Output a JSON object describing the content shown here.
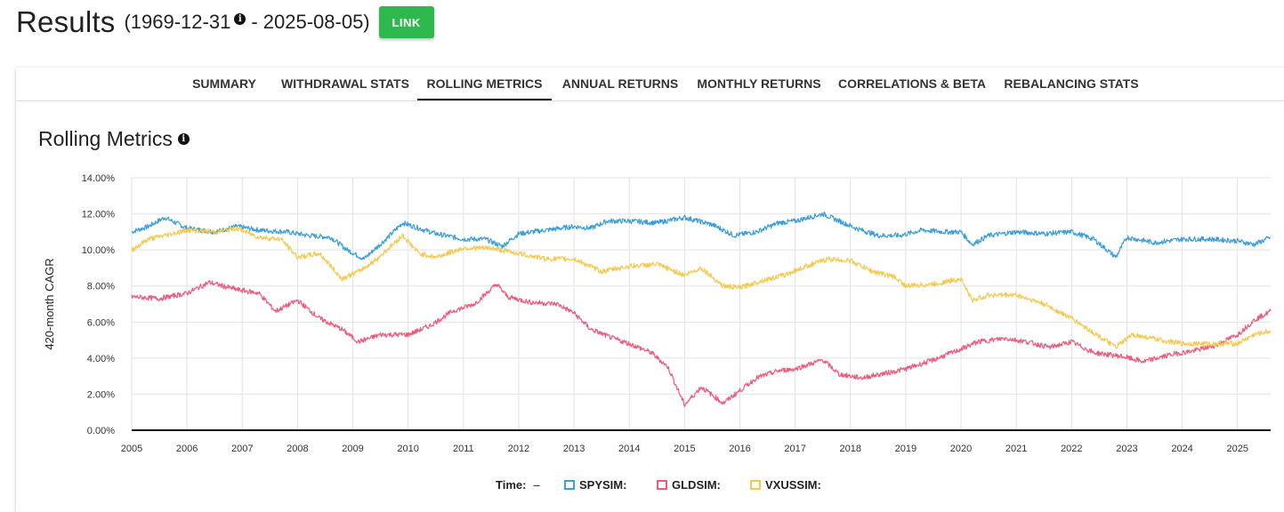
{
  "header": {
    "title": "Results",
    "range_start": "(1969-12-31",
    "range_end": "- 2025-08-05)",
    "link_label": "LINK"
  },
  "tabs": [
    {
      "label": "SUMMARY",
      "active": false
    },
    {
      "label": "WITHDRAWAL STATS",
      "active": false
    },
    {
      "label": "ROLLING METRICS",
      "active": true
    },
    {
      "label": "ANNUAL RETURNS",
      "active": false
    },
    {
      "label": "MONTHLY RETURNS",
      "active": false
    },
    {
      "label": "CORRELATIONS & BETA",
      "active": false
    },
    {
      "label": "REBALANCING STATS",
      "active": false
    }
  ],
  "section": {
    "title": "Rolling Metrics",
    "info_icon": "info-circle-icon"
  },
  "legend": {
    "time_label": "Time:",
    "time_value": "–"
  },
  "chart_data": {
    "type": "line",
    "ylabel": "420-month CAGR",
    "xlabel": "",
    "ylim": [
      0,
      14
    ],
    "xlim": [
      2005,
      2025.6
    ],
    "yticks": [
      "0.00%",
      "2.00%",
      "4.00%",
      "6.00%",
      "8.00%",
      "10.00%",
      "12.00%",
      "14.00%"
    ],
    "xticks": [
      "2005",
      "2006",
      "2007",
      "2008",
      "2009",
      "2010",
      "2011",
      "2012",
      "2013",
      "2014",
      "2015",
      "2016",
      "2017",
      "2018",
      "2019",
      "2020",
      "2021",
      "2022",
      "2023",
      "2024",
      "2025"
    ],
    "grid": true,
    "legend_position": "bottom",
    "series": [
      {
        "name": "SPYSIM:",
        "color": "#3b9ddc",
        "x": [
          2005.0,
          2005.3,
          2005.6,
          2006.0,
          2006.5,
          2006.9,
          2007.3,
          2007.8,
          2008.2,
          2008.6,
          2008.9,
          2009.2,
          2009.6,
          2009.9,
          2010.2,
          2010.5,
          2011.0,
          2011.4,
          2011.7,
          2012.0,
          2012.5,
          2013.0,
          2013.3,
          2013.6,
          2014.0,
          2014.5,
          2015.0,
          2015.5,
          2015.9,
          2016.3,
          2016.7,
          2017.0,
          2017.5,
          2017.8,
          2018.1,
          2018.5,
          2018.9,
          2019.3,
          2019.7,
          2020.0,
          2020.2,
          2020.5,
          2021.0,
          2021.5,
          2022.0,
          2022.4,
          2022.8,
          2023.0,
          2023.5,
          2024.0,
          2024.5,
          2025.0,
          2025.3,
          2025.6
        ],
        "values": [
          11.0,
          11.3,
          11.8,
          11.2,
          11.0,
          11.3,
          11.1,
          11.0,
          10.8,
          10.7,
          10.0,
          9.5,
          10.6,
          11.5,
          11.2,
          10.9,
          10.6,
          10.6,
          10.2,
          10.9,
          11.1,
          11.3,
          11.2,
          11.6,
          11.6,
          11.5,
          11.8,
          11.4,
          10.8,
          11.0,
          11.5,
          11.6,
          12.0,
          11.6,
          11.2,
          10.8,
          10.8,
          11.1,
          11.0,
          11.0,
          10.3,
          10.8,
          11.0,
          10.9,
          11.0,
          10.6,
          9.6,
          10.7,
          10.4,
          10.6,
          10.6,
          10.5,
          10.3,
          10.7
        ]
      },
      {
        "name": "GLDSIM:",
        "color": "#ee5a7c",
        "x": [
          2005.0,
          2005.5,
          2006.0,
          2006.4,
          2006.9,
          2007.3,
          2007.6,
          2008.0,
          2008.4,
          2008.8,
          2009.1,
          2009.5,
          2010.0,
          2010.4,
          2010.8,
          2011.2,
          2011.6,
          2011.8,
          2012.2,
          2012.7,
          2013.0,
          2013.3,
          2013.7,
          2014.0,
          2014.4,
          2014.7,
          2015.0,
          2015.3,
          2015.7,
          2016.0,
          2016.3,
          2016.7,
          2017.0,
          2017.5,
          2017.8,
          2018.2,
          2018.7,
          2019.0,
          2019.5,
          2020.0,
          2020.3,
          2020.8,
          2021.2,
          2021.6,
          2022.0,
          2022.4,
          2022.9,
          2023.3,
          2023.8,
          2024.2,
          2024.6,
          2025.0,
          2025.3,
          2025.6
        ],
        "values": [
          7.4,
          7.3,
          7.6,
          8.2,
          7.8,
          7.6,
          6.6,
          7.2,
          6.2,
          5.6,
          4.9,
          5.3,
          5.3,
          5.8,
          6.6,
          7.0,
          8.1,
          7.4,
          7.1,
          7.0,
          6.5,
          5.6,
          5.1,
          4.8,
          4.3,
          3.5,
          1.4,
          2.4,
          1.5,
          2.2,
          2.9,
          3.3,
          3.4,
          3.9,
          3.1,
          2.9,
          3.2,
          3.4,
          3.9,
          4.5,
          4.9,
          5.1,
          4.9,
          4.6,
          4.9,
          4.3,
          4.1,
          3.8,
          4.2,
          4.4,
          4.7,
          5.3,
          6.1,
          6.6
        ]
      },
      {
        "name": "VXUSSIM:",
        "color": "#f6c94e",
        "x": [
          2005.0,
          2005.3,
          2005.6,
          2006.0,
          2006.5,
          2006.9,
          2007.3,
          2007.7,
          2008.0,
          2008.4,
          2008.8,
          2009.1,
          2009.4,
          2009.9,
          2010.2,
          2010.5,
          2011.0,
          2011.5,
          2012.0,
          2012.5,
          2013.0,
          2013.5,
          2014.0,
          2014.5,
          2015.0,
          2015.3,
          2015.7,
          2016.0,
          2016.4,
          2016.8,
          2017.2,
          2017.6,
          2018.0,
          2018.4,
          2018.8,
          2019.0,
          2019.5,
          2020.0,
          2020.2,
          2020.5,
          2021.0,
          2021.5,
          2022.0,
          2022.4,
          2022.8,
          2023.1,
          2023.6,
          2024.0,
          2024.5,
          2025.0,
          2025.3,
          2025.6
        ],
        "values": [
          10.0,
          10.6,
          10.8,
          11.1,
          11.0,
          11.2,
          10.7,
          10.6,
          9.6,
          9.8,
          8.4,
          8.8,
          9.4,
          10.8,
          9.8,
          9.6,
          10.1,
          10.1,
          9.8,
          9.5,
          9.5,
          8.8,
          9.1,
          9.2,
          8.6,
          9.0,
          8.0,
          7.9,
          8.3,
          8.6,
          9.1,
          9.5,
          9.4,
          8.8,
          8.5,
          8.0,
          8.1,
          8.4,
          7.2,
          7.5,
          7.5,
          7.0,
          6.2,
          5.4,
          4.6,
          5.3,
          5.0,
          4.8,
          4.8,
          4.8,
          5.3,
          5.5
        ]
      }
    ]
  }
}
